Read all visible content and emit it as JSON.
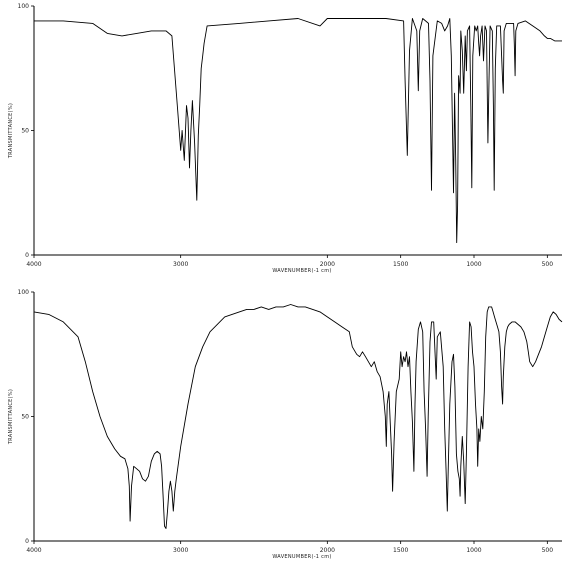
{
  "chart_data": [
    {
      "type": "line",
      "xlabel": "WAVENUMBER(-1 cm)",
      "ylabel": "TRANSMITTANCE(%)",
      "xlim": [
        4000,
        400
      ],
      "ylim": [
        0,
        100
      ],
      "x_reversed": true,
      "xticks": [
        4000,
        3000,
        2000,
        1500,
        1000,
        500
      ],
      "xtick_labels": [
        "4000",
        "3000",
        "2000",
        "1500",
        "1000",
        "500"
      ],
      "yticks": [
        0,
        50,
        100
      ],
      "ytick_labels": [
        "0",
        "50",
        "100"
      ],
      "grid": false,
      "series": [
        {
          "points": [
            [
              4000,
              94
            ],
            [
              3800,
              94
            ],
            [
              3600,
              93
            ],
            [
              3500,
              89
            ],
            [
              3400,
              88
            ],
            [
              3300,
              89
            ],
            [
              3200,
              90
            ],
            [
              3100,
              90
            ],
            [
              3060,
              88
            ],
            [
              3020,
              58
            ],
            [
              3000,
              42
            ],
            [
              2990,
              50
            ],
            [
              2975,
              38
            ],
            [
              2960,
              60
            ],
            [
              2950,
              55
            ],
            [
              2940,
              35
            ],
            [
              2930,
              50
            ],
            [
              2920,
              62
            ],
            [
              2905,
              45
            ],
            [
              2890,
              22
            ],
            [
              2880,
              48
            ],
            [
              2870,
              60
            ],
            [
              2860,
              75
            ],
            [
              2850,
              80
            ],
            [
              2840,
              85
            ],
            [
              2820,
              92
            ],
            [
              2600,
              93
            ],
            [
              2400,
              94
            ],
            [
              2200,
              95
            ],
            [
              2050,
              92
            ],
            [
              2000,
              95
            ],
            [
              1800,
              95
            ],
            [
              1600,
              95
            ],
            [
              1480,
              94
            ],
            [
              1470,
              70
            ],
            [
              1455,
              40
            ],
            [
              1440,
              82
            ],
            [
              1420,
              95
            ],
            [
              1390,
              90
            ],
            [
              1380,
              66
            ],
            [
              1370,
              90
            ],
            [
              1350,
              95
            ],
            [
              1310,
              93
            ],
            [
              1300,
              70
            ],
            [
              1290,
              26
            ],
            [
              1280,
              80
            ],
            [
              1250,
              94
            ],
            [
              1220,
              93
            ],
            [
              1200,
              90
            ],
            [
              1180,
              92
            ],
            [
              1165,
              95
            ],
            [
              1155,
              80
            ],
            [
              1148,
              55
            ],
            [
              1140,
              25
            ],
            [
              1132,
              65
            ],
            [
              1125,
              38
            ],
            [
              1118,
              5
            ],
            [
              1112,
              20
            ],
            [
              1105,
              72
            ],
            [
              1095,
              65
            ],
            [
              1090,
              90
            ],
            [
              1080,
              82
            ],
            [
              1070,
              65
            ],
            [
              1060,
              88
            ],
            [
              1052,
              74
            ],
            [
              1045,
              90
            ],
            [
              1030,
              92
            ],
            [
              1022,
              60
            ],
            [
              1015,
              27
            ],
            [
              1008,
              80
            ],
            [
              995,
              92
            ],
            [
              985,
              90
            ],
            [
              975,
              92
            ],
            [
              968,
              85
            ],
            [
              962,
              80
            ],
            [
              955,
              88
            ],
            [
              945,
              92
            ],
            [
              935,
              78
            ],
            [
              925,
              92
            ],
            [
              915,
              90
            ],
            [
              905,
              45
            ],
            [
              898,
              70
            ],
            [
              890,
              92
            ],
            [
              875,
              90
            ],
            [
              868,
              60
            ],
            [
              862,
              26
            ],
            [
              855,
              75
            ],
            [
              845,
              92
            ],
            [
              820,
              92
            ],
            [
              805,
              70
            ],
            [
              800,
              65
            ],
            [
              795,
              90
            ],
            [
              780,
              93
            ],
            [
              760,
              93
            ],
            [
              730,
              93
            ],
            [
              725,
              85
            ],
            [
              720,
              72
            ],
            [
              715,
              90
            ],
            [
              700,
              93
            ],
            [
              650,
              94
            ],
            [
              600,
              92
            ],
            [
              550,
              90
            ],
            [
              520,
              88
            ],
            [
              500,
              87
            ],
            [
              480,
              87
            ],
            [
              450,
              86
            ],
            [
              400,
              86
            ]
          ]
        }
      ]
    },
    {
      "type": "line",
      "xlabel": "WAVENUMBER(-1 cm)",
      "ylabel": "TRANSMITTANCE(%)",
      "xlim": [
        4000,
        400
      ],
      "ylim": [
        0,
        100
      ],
      "x_reversed": true,
      "xticks": [
        4000,
        3000,
        2000,
        1500,
        1000,
        500
      ],
      "xtick_labels": [
        "4000",
        "3000",
        "2000",
        "1500",
        "1000",
        "500"
      ],
      "yticks": [
        0,
        50,
        100
      ],
      "ytick_labels": [
        "0",
        "50",
        "100"
      ],
      "grid": false,
      "series": [
        {
          "points": [
            [
              4000,
              92
            ],
            [
              3900,
              91
            ],
            [
              3800,
              88
            ],
            [
              3700,
              82
            ],
            [
              3650,
              72
            ],
            [
              3600,
              60
            ],
            [
              3550,
              50
            ],
            [
              3500,
              42
            ],
            [
              3450,
              37
            ],
            [
              3410,
              34
            ],
            [
              3380,
              33
            ],
            [
              3360,
              29
            ],
            [
              3350,
              22
            ],
            [
              3345,
              8
            ],
            [
              3335,
              22
            ],
            [
              3320,
              30
            ],
            [
              3300,
              29
            ],
            [
              3280,
              28
            ],
            [
              3260,
              25
            ],
            [
              3240,
              24
            ],
            [
              3220,
              26
            ],
            [
              3200,
              32
            ],
            [
              3180,
              35
            ],
            [
              3160,
              36
            ],
            [
              3140,
              35
            ],
            [
              3130,
              30
            ],
            [
              3120,
              18
            ],
            [
              3110,
              6
            ],
            [
              3100,
              5
            ],
            [
              3090,
              12
            ],
            [
              3080,
              20
            ],
            [
              3070,
              24
            ],
            [
              3060,
              20
            ],
            [
              3050,
              12
            ],
            [
              3040,
              20
            ],
            [
              3030,
              25
            ],
            [
              3000,
              38
            ],
            [
              2950,
              55
            ],
            [
              2900,
              70
            ],
            [
              2850,
              78
            ],
            [
              2800,
              84
            ],
            [
              2750,
              87
            ],
            [
              2700,
              90
            ],
            [
              2650,
              91
            ],
            [
              2600,
              92
            ],
            [
              2550,
              93
            ],
            [
              2500,
              93
            ],
            [
              2450,
              94
            ],
            [
              2400,
              93
            ],
            [
              2350,
              94
            ],
            [
              2300,
              94
            ],
            [
              2250,
              95
            ],
            [
              2200,
              94
            ],
            [
              2150,
              94
            ],
            [
              2100,
              93
            ],
            [
              2050,
              92
            ],
            [
              2000,
              90
            ],
            [
              1950,
              88
            ],
            [
              1900,
              86
            ],
            [
              1850,
              84
            ],
            [
              1830,
              78
            ],
            [
              1800,
              75
            ],
            [
              1780,
              74
            ],
            [
              1760,
              76
            ],
            [
              1740,
              74
            ],
            [
              1720,
              72
            ],
            [
              1700,
              70
            ],
            [
              1680,
              72
            ],
            [
              1660,
              68
            ],
            [
              1640,
              66
            ],
            [
              1620,
              60
            ],
            [
              1605,
              50
            ],
            [
              1598,
              38
            ],
            [
              1592,
              55
            ],
            [
              1580,
              60
            ],
            [
              1562,
              35
            ],
            [
              1555,
              20
            ],
            [
              1545,
              40
            ],
            [
              1530,
              60
            ],
            [
              1510,
              65
            ],
            [
              1500,
              76
            ],
            [
              1490,
              70
            ],
            [
              1480,
              74
            ],
            [
              1470,
              72
            ],
            [
              1460,
              76
            ],
            [
              1450,
              70
            ],
            [
              1440,
              74
            ],
            [
              1430,
              60
            ],
            [
              1420,
              48
            ],
            [
              1410,
              28
            ],
            [
              1402,
              55
            ],
            [
              1395,
              72
            ],
            [
              1380,
              85
            ],
            [
              1365,
              88
            ],
            [
              1350,
              84
            ],
            [
              1340,
              60
            ],
            [
              1330,
              45
            ],
            [
              1320,
              26
            ],
            [
              1312,
              50
            ],
            [
              1300,
              80
            ],
            [
              1290,
              88
            ],
            [
              1275,
              88
            ],
            [
              1265,
              75
            ],
            [
              1258,
              65
            ],
            [
              1250,
              82
            ],
            [
              1230,
              84
            ],
            [
              1210,
              70
            ],
            [
              1200,
              45
            ],
            [
              1190,
              28
            ],
            [
              1182,
              12
            ],
            [
              1175,
              30
            ],
            [
              1165,
              55
            ],
            [
              1150,
              72
            ],
            [
              1140,
              75
            ],
            [
              1130,
              62
            ],
            [
              1120,
              35
            ],
            [
              1110,
              28
            ],
            [
              1100,
              25
            ],
            [
              1095,
              18
            ],
            [
              1090,
              30
            ],
            [
              1080,
              42
            ],
            [
              1070,
              32
            ],
            [
              1060,
              15
            ],
            [
              1052,
              35
            ],
            [
              1040,
              70
            ],
            [
              1030,
              88
            ],
            [
              1020,
              86
            ],
            [
              1010,
              76
            ],
            [
              1000,
              70
            ],
            [
              990,
              55
            ],
            [
              980,
              45
            ],
            [
              975,
              30
            ],
            [
              968,
              45
            ],
            [
              960,
              40
            ],
            [
              950,
              50
            ],
            [
              940,
              45
            ],
            [
              930,
              60
            ],
            [
              920,
              82
            ],
            [
              910,
              92
            ],
            [
              900,
              94
            ],
            [
              880,
              94
            ],
            [
              870,
              92
            ],
            [
              860,
              90
            ],
            [
              850,
              88
            ],
            [
              840,
              86
            ],
            [
              830,
              84
            ],
            [
              820,
              76
            ],
            [
              812,
              62
            ],
            [
              805,
              55
            ],
            [
              800,
              66
            ],
            [
              790,
              78
            ],
            [
              780,
              84
            ],
            [
              770,
              86
            ],
            [
              760,
              87
            ],
            [
              740,
              88
            ],
            [
              720,
              88
            ],
            [
              700,
              87
            ],
            [
              680,
              86
            ],
            [
              660,
              84
            ],
            [
              640,
              80
            ],
            [
              630,
              76
            ],
            [
              620,
              72
            ],
            [
              600,
              70
            ],
            [
              580,
              72
            ],
            [
              560,
              75
            ],
            [
              540,
              78
            ],
            [
              520,
              82
            ],
            [
              500,
              86
            ],
            [
              480,
              90
            ],
            [
              460,
              92
            ],
            [
              440,
              91
            ],
            [
              420,
              89
            ],
            [
              400,
              88
            ]
          ]
        }
      ]
    }
  ]
}
